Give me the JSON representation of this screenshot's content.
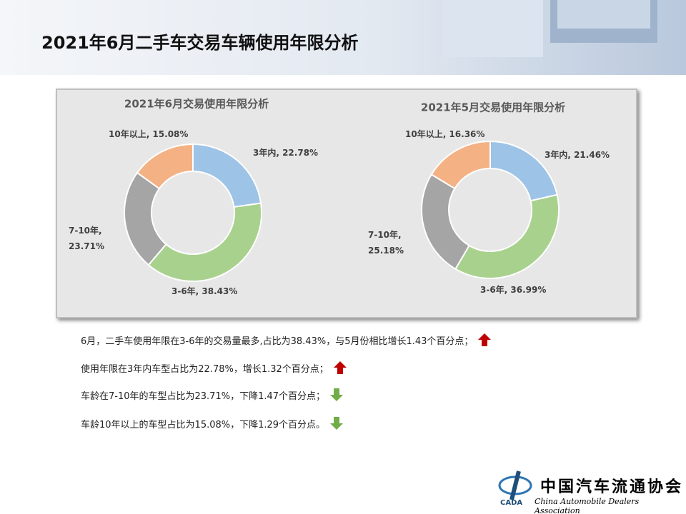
{
  "title": "2021年6月二手车交易车辆使用年限分析",
  "chart_data": [
    {
      "type": "donut",
      "title": "2021年6月交易使用年限分析",
      "values": [
        22.78,
        38.43,
        23.71,
        15.08
      ],
      "value_labels": [
        "3年内, 22.78%",
        "3-6年, 38.43%",
        "7-10年,\n23.71%",
        "10年以上, 15.08%"
      ],
      "colors": [
        "#9dc3e6",
        "#a9d18e",
        "#a5a5a5",
        "#f4b183"
      ]
    },
    {
      "type": "donut",
      "title": "2021年5月交易使用年限分析",
      "values": [
        21.46,
        36.99,
        25.18,
        16.36
      ],
      "value_labels": [
        "3年内, 21.46%",
        "3-6年, 36.99%",
        "7-10年,\n25.18%",
        "10年以上, 16.36%"
      ],
      "colors": [
        "#9dc3e6",
        "#a9d18e",
        "#a5a5a5",
        "#f4b183"
      ]
    }
  ],
  "notes": [
    {
      "text": "6月，二手车使用年限在3-6年的交易量最多,占比为38.43%，与5月份相比增长1.43个百分点；",
      "trend": "up"
    },
    {
      "text": "使用年限在3年内车型占比为22.78%，增长1.32个百分点；",
      "trend": "up"
    },
    {
      "text": "车龄在7-10年的车型占比为23.71%，下降1.47个百分点；",
      "trend": "down"
    },
    {
      "text": "车龄10年以上的车型占比为15.08%，下降1.29个百分点。",
      "trend": "down"
    }
  ],
  "logo": {
    "name": "中国汽车流通协会",
    "english": "China Automobile Dealers Association",
    "abbr": "CADA"
  }
}
